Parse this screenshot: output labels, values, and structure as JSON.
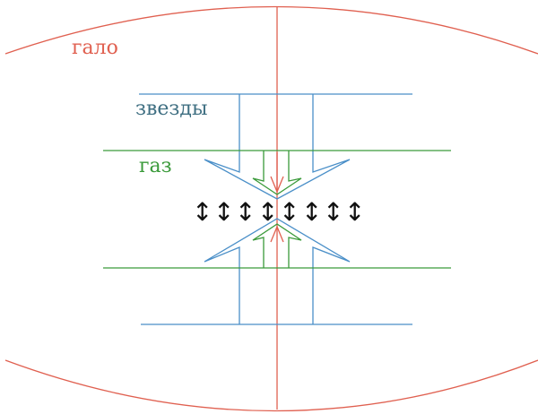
{
  "labels": {
    "halo": "гало",
    "stars": "звезды",
    "gas": "газ"
  },
  "vertical_arrow_glyph": "↕",
  "vertical_arrow_count": 8,
  "colors": {
    "halo": "#e06050",
    "stars": "#4a8fc8",
    "stars_label": "#3f6f82",
    "gas": "#3a9a3a",
    "arrows": "#111111"
  }
}
